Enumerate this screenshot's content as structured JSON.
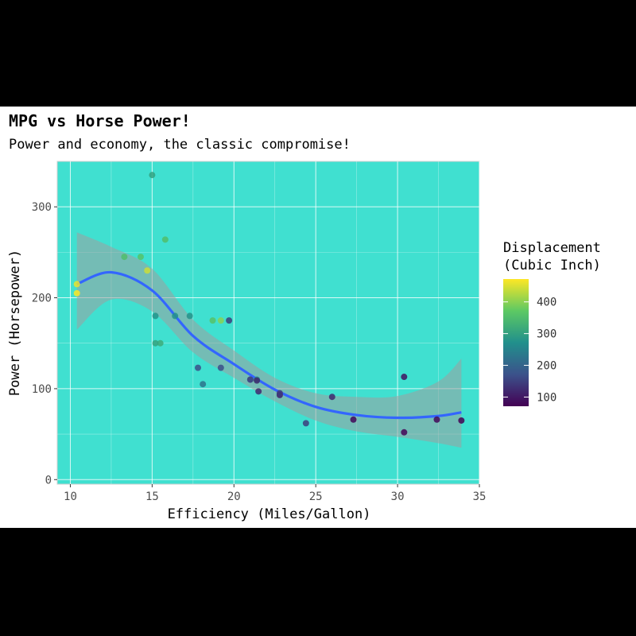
{
  "chart_data": {
    "type": "scatter",
    "title": "MPG vs Horse Power!",
    "subtitle": "Power and economy, the classic compromise!",
    "xlabel": "Efficiency (Miles/Gallon)",
    "ylabel": "Power (Horsepower)",
    "xlim": [
      9.2,
      35
    ],
    "ylim": [
      -5,
      350
    ],
    "xticks": [
      10,
      15,
      20,
      25,
      30,
      35
    ],
    "yticks": [
      0,
      100,
      200,
      300
    ],
    "panel_background": "#40e0d0",
    "grid": true,
    "legend": {
      "title_line1": "Displacement",
      "title_line2": "(Cubic Inch)",
      "position": "right",
      "ticks": [
        100,
        200,
        300,
        400
      ],
      "range": [
        71,
        472
      ]
    },
    "colormap": [
      "#440154",
      "#3b528b",
      "#21908c",
      "#5dc963",
      "#fde725"
    ],
    "points": [
      {
        "x": 21.0,
        "y": 110,
        "disp": 160
      },
      {
        "x": 21.0,
        "y": 110,
        "disp": 160
      },
      {
        "x": 22.8,
        "y": 93,
        "disp": 108
      },
      {
        "x": 21.4,
        "y": 110,
        "disp": 258
      },
      {
        "x": 18.7,
        "y": 175,
        "disp": 360
      },
      {
        "x": 18.1,
        "y": 105,
        "disp": 225
      },
      {
        "x": 14.3,
        "y": 245,
        "disp": 360
      },
      {
        "x": 24.4,
        "y": 62,
        "disp": 146.7
      },
      {
        "x": 22.8,
        "y": 95,
        "disp": 140.8
      },
      {
        "x": 19.2,
        "y": 123,
        "disp": 167.6
      },
      {
        "x": 17.8,
        "y": 123,
        "disp": 167.6
      },
      {
        "x": 16.4,
        "y": 180,
        "disp": 275.8
      },
      {
        "x": 17.3,
        "y": 180,
        "disp": 275.8
      },
      {
        "x": 15.2,
        "y": 180,
        "disp": 275.8
      },
      {
        "x": 10.4,
        "y": 205,
        "disp": 472
      },
      {
        "x": 10.4,
        "y": 215,
        "disp": 460
      },
      {
        "x": 14.7,
        "y": 230,
        "disp": 440
      },
      {
        "x": 32.4,
        "y": 66,
        "disp": 78.7
      },
      {
        "x": 30.4,
        "y": 52,
        "disp": 75.7
      },
      {
        "x": 33.9,
        "y": 65,
        "disp": 71.1
      },
      {
        "x": 21.5,
        "y": 97,
        "disp": 120.1
      },
      {
        "x": 15.5,
        "y": 150,
        "disp": 318
      },
      {
        "x": 15.2,
        "y": 150,
        "disp": 304
      },
      {
        "x": 13.3,
        "y": 245,
        "disp": 350
      },
      {
        "x": 19.2,
        "y": 175,
        "disp": 400
      },
      {
        "x": 27.3,
        "y": 66,
        "disp": 79
      },
      {
        "x": 26.0,
        "y": 91,
        "disp": 120.3
      },
      {
        "x": 30.4,
        "y": 113,
        "disp": 95.1
      },
      {
        "x": 15.8,
        "y": 264,
        "disp": 351
      },
      {
        "x": 19.7,
        "y": 175,
        "disp": 145
      },
      {
        "x": 15.0,
        "y": 335,
        "disp": 301
      },
      {
        "x": 21.4,
        "y": 109,
        "disp": 121
      }
    ],
    "smooth": {
      "color": "#3366ff",
      "band_color": "#9e9e9e",
      "x": [
        10.4,
        12.5,
        15.0,
        17.5,
        20.0,
        22.5,
        25.0,
        27.5,
        30.0,
        32.5,
        33.9
      ],
      "y": [
        215,
        228,
        208,
        158,
        127,
        99,
        80,
        71,
        68,
        70,
        74
      ],
      "ymin": [
        165,
        198,
        185,
        140,
        112,
        86,
        65,
        53,
        47,
        40,
        35
      ],
      "ymax": [
        272,
        256,
        232,
        176,
        142,
        112,
        95,
        91,
        92,
        108,
        133
      ]
    }
  }
}
